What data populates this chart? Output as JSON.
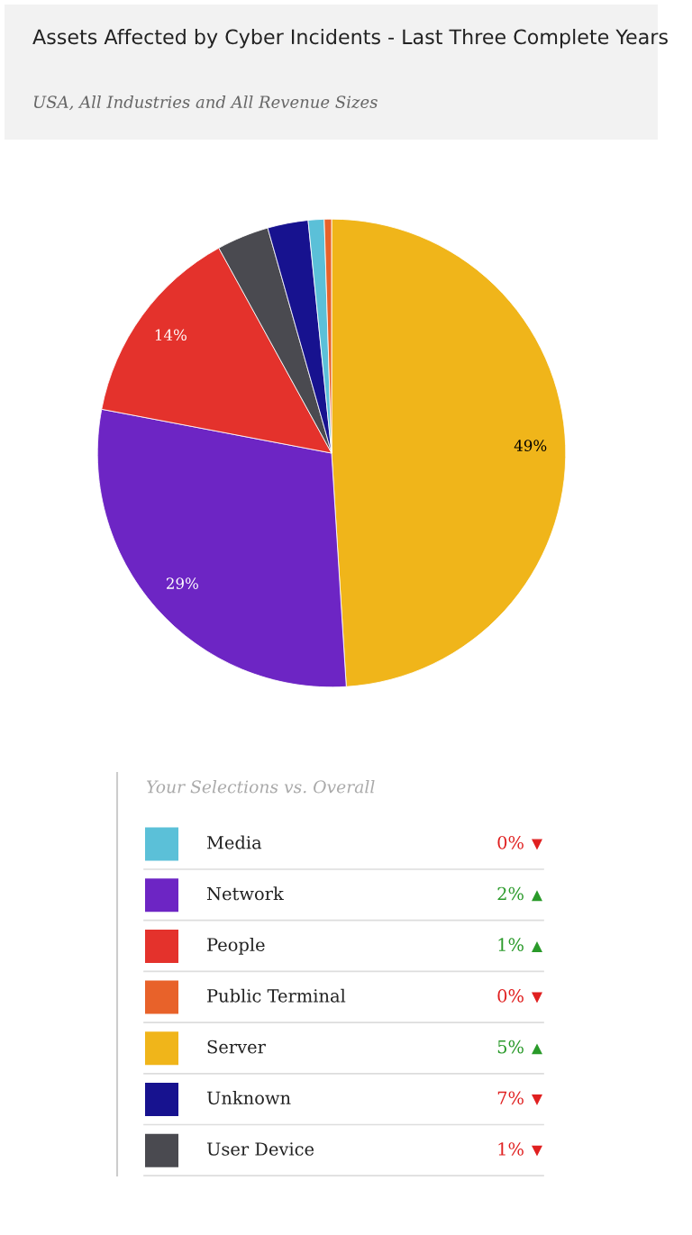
{
  "chart_data": [
    {
      "type": "pie",
      "title": "Assets Affected by Cyber Incidents - Last Three Complete Years",
      "subtitle": "USA, All Industries and All Revenue Sizes",
      "categories": [
        "Server",
        "Network",
        "People",
        "User Device",
        "Unknown",
        "Media",
        "Public Terminal"
      ],
      "values": [
        49,
        29,
        14,
        3.6,
        2.8,
        1.1,
        0.5
      ],
      "colors": [
        "#f0b51a",
        "#6d25c4",
        "#e4322c",
        "#4a4a50",
        "#17128f",
        "#5bc0d8",
        "#e8622a"
      ],
      "value_labels": [
        "49%",
        "29%",
        "14%",
        null,
        null,
        null,
        null
      ],
      "legend": "bottom",
      "legend_title": "Your Selections vs. Overall"
    },
    {
      "type": "other",
      "annotations": [
        "0%",
        "2%",
        "1%",
        "0%",
        "5%",
        "7%",
        "1%"
      ],
      "colors": [
        "#e02020",
        "#2a9a2a",
        "#2a9a2a",
        "#e02020",
        "#2a9a2a",
        "#e02020",
        "#e02020"
      ]
    }
  ]
}
